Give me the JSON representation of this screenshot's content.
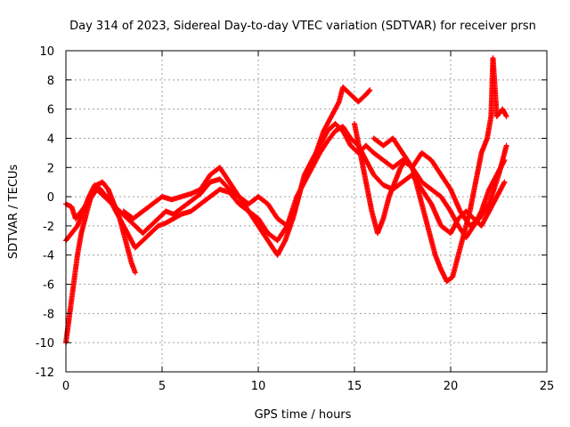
{
  "chart_data": {
    "type": "scatter",
    "title": "Day 314 of 2023, Sidereal Day-to-day VTEC variation (SDTVAR) for receiver prsn",
    "xlabel": "GPS time / hours",
    "ylabel": "SDTVAR / TECUs",
    "xlim": [
      0,
      25
    ],
    "ylim": [
      -12,
      10
    ],
    "x_ticks": [
      0,
      5,
      10,
      15,
      20,
      25
    ],
    "y_ticks": [
      -12,
      -10,
      -8,
      -6,
      -4,
      -2,
      0,
      2,
      4,
      6,
      8,
      10
    ],
    "grid": true,
    "marker": "+",
    "color": "#ff0000",
    "series": [
      {
        "points": [
          [
            0,
            -0.5
          ],
          [
            0.3,
            -0.7
          ],
          [
            0.5,
            -1.5
          ],
          [
            0.8,
            -1.0
          ],
          [
            1.2,
            -0.3
          ],
          [
            1.6,
            0.5
          ],
          [
            2.0,
            0.0
          ],
          [
            2.4,
            -0.5
          ],
          [
            2.8,
            -1.0
          ],
          [
            3.2,
            -1.5
          ],
          [
            3.6,
            -2.0
          ],
          [
            4.0,
            -2.5
          ],
          [
            4.4,
            -2.0
          ],
          [
            4.8,
            -1.5
          ],
          [
            5.2,
            -1.0
          ],
          [
            5.6,
            -1.2
          ],
          [
            6.0,
            -0.8
          ],
          [
            6.5,
            -0.3
          ],
          [
            7.0,
            0.2
          ],
          [
            7.5,
            1.0
          ],
          [
            8.0,
            1.2
          ],
          [
            8.5,
            0.5
          ],
          [
            9.0,
            0.0
          ],
          [
            9.5,
            -0.5
          ],
          [
            10.0,
            0.0
          ],
          [
            10.5,
            -0.5
          ],
          [
            11.0,
            -1.5
          ],
          [
            11.5,
            -2.0
          ],
          [
            12.0,
            -0.5
          ],
          [
            12.4,
            1.5
          ],
          [
            12.8,
            2.5
          ],
          [
            13.2,
            3.5
          ],
          [
            13.6,
            4.5
          ],
          [
            14.0,
            5.0
          ],
          [
            14.4,
            4.5
          ],
          [
            14.8,
            3.5
          ],
          [
            15.2,
            3.0
          ],
          [
            15.6,
            3.5
          ],
          [
            16.0,
            3.0
          ],
          [
            16.5,
            2.5
          ],
          [
            17.0,
            2.0
          ],
          [
            17.5,
            2.5
          ],
          [
            18.0,
            2.0
          ],
          [
            18.5,
            1.0
          ],
          [
            19.0,
            0.5
          ],
          [
            19.5,
            0.0
          ],
          [
            20.0,
            -1.0
          ],
          [
            20.4,
            -2.0
          ],
          [
            20.8,
            -2.8
          ],
          [
            21.2,
            -2.0
          ],
          [
            21.6,
            -1.0
          ],
          [
            22.0,
            0.5
          ],
          [
            22.4,
            1.5
          ],
          [
            22.8,
            2.5
          ]
        ]
      },
      {
        "points": [
          [
            0,
            -3.0
          ],
          [
            0.3,
            -2.5
          ],
          [
            0.6,
            -2.0
          ],
          [
            0.9,
            -1.0
          ],
          [
            1.2,
            0.0
          ],
          [
            1.5,
            0.8
          ],
          [
            1.8,
            0.5
          ],
          [
            2.1,
            0.0
          ],
          [
            2.4,
            -0.5
          ],
          [
            2.8,
            -1.5
          ],
          [
            3.2,
            -2.5
          ],
          [
            3.6,
            -3.5
          ],
          [
            4.0,
            -3.0
          ],
          [
            4.4,
            -2.5
          ],
          [
            4.8,
            -2.0
          ],
          [
            5.2,
            -1.8
          ],
          [
            5.6,
            -1.5
          ],
          [
            6.0,
            -1.2
          ],
          [
            6.5,
            -1.0
          ],
          [
            7.0,
            -0.5
          ],
          [
            7.5,
            0.0
          ],
          [
            8.0,
            0.5
          ],
          [
            8.5,
            0.3
          ],
          [
            9.0,
            -0.5
          ],
          [
            9.5,
            -1.0
          ],
          [
            10.0,
            -1.5
          ],
          [
            10.5,
            -2.5
          ],
          [
            11.0,
            -3.0
          ],
          [
            11.5,
            -2.0
          ],
          [
            12.0,
            0.0
          ],
          [
            12.4,
            1.0
          ],
          [
            12.8,
            2.0
          ],
          [
            13.2,
            3.0
          ],
          [
            13.6,
            3.8
          ],
          [
            14.0,
            4.5
          ],
          [
            14.4,
            4.8
          ],
          [
            14.8,
            4.0
          ],
          [
            15.2,
            3.5
          ],
          [
            15.6,
            2.5
          ],
          [
            16.0,
            1.5
          ],
          [
            16.5,
            0.8
          ],
          [
            17.0,
            0.5
          ],
          [
            17.5,
            1.0
          ],
          [
            18.0,
            1.5
          ],
          [
            18.5,
            0.5
          ],
          [
            19.0,
            -0.5
          ],
          [
            19.5,
            -2.0
          ],
          [
            20.0,
            -2.5
          ],
          [
            20.4,
            -1.5
          ],
          [
            20.8,
            -1.0
          ],
          [
            21.2,
            -1.5
          ],
          [
            21.6,
            -2.0
          ],
          [
            22.0,
            -1.0
          ],
          [
            22.4,
            0.0
          ],
          [
            22.8,
            1.0
          ]
        ]
      },
      {
        "points": [
          [
            0,
            -10.0
          ],
          [
            0.2,
            -8.0
          ],
          [
            0.4,
            -6.0
          ],
          [
            0.6,
            -4.0
          ],
          [
            0.8,
            -2.5
          ],
          [
            1.0,
            -1.5
          ],
          [
            1.3,
            0.0
          ],
          [
            1.6,
            0.8
          ],
          [
            1.9,
            1.0
          ],
          [
            2.2,
            0.5
          ],
          [
            2.5,
            -0.5
          ],
          [
            2.8,
            -1.5
          ],
          [
            3.0,
            -2.5
          ],
          [
            3.2,
            -3.5
          ],
          [
            3.4,
            -4.5
          ],
          [
            3.6,
            -5.2
          ]
        ]
      },
      {
        "points": [
          [
            3.0,
            -1.0
          ],
          [
            3.5,
            -1.5
          ],
          [
            4.0,
            -1.0
          ],
          [
            4.5,
            -0.5
          ],
          [
            5.0,
            0.0
          ],
          [
            5.5,
            -0.2
          ],
          [
            6.0,
            0.0
          ],
          [
            6.5,
            0.2
          ],
          [
            7.0,
            0.5
          ],
          [
            7.5,
            1.5
          ],
          [
            8.0,
            2.0
          ],
          [
            8.5,
            1.0
          ],
          [
            9.0,
            0.0
          ],
          [
            9.5,
            -1.0
          ],
          [
            10.0,
            -2.0
          ],
          [
            10.5,
            -3.0
          ],
          [
            11.0,
            -4.0
          ],
          [
            11.4,
            -3.0
          ],
          [
            11.8,
            -1.5
          ],
          [
            12.2,
            0.5
          ],
          [
            12.6,
            2.0
          ],
          [
            13.0,
            3.0
          ],
          [
            13.4,
            4.5
          ],
          [
            13.8,
            5.5
          ],
          [
            14.2,
            6.5
          ],
          [
            14.4,
            7.5
          ],
          [
            14.8,
            7.0
          ],
          [
            15.2,
            6.5
          ],
          [
            15.6,
            7.0
          ],
          [
            15.8,
            7.3
          ]
        ]
      },
      {
        "points": [
          [
            15.0,
            5.0
          ],
          [
            15.3,
            3.0
          ],
          [
            15.6,
            1.0
          ],
          [
            15.9,
            -1.0
          ],
          [
            16.2,
            -2.5
          ],
          [
            16.5,
            -1.5
          ],
          [
            16.8,
            0.0
          ],
          [
            17.1,
            1.0
          ],
          [
            17.4,
            2.0
          ],
          [
            17.7,
            2.5
          ],
          [
            18.0,
            2.0
          ],
          [
            18.3,
            0.5
          ],
          [
            18.6,
            -1.0
          ],
          [
            18.9,
            -2.5
          ],
          [
            19.2,
            -4.0
          ],
          [
            19.5,
            -5.0
          ],
          [
            19.8,
            -5.8
          ],
          [
            20.1,
            -5.5
          ],
          [
            20.4,
            -4.0
          ],
          [
            20.7,
            -2.5
          ],
          [
            21.0,
            -1.0
          ],
          [
            21.3,
            1.0
          ],
          [
            21.6,
            3.0
          ],
          [
            21.9,
            4.0
          ],
          [
            22.1,
            5.5
          ],
          [
            22.2,
            9.5
          ],
          [
            22.4,
            5.5
          ],
          [
            22.7,
            6.0
          ],
          [
            22.9,
            5.5
          ]
        ]
      },
      {
        "points": [
          [
            16.0,
            4.0
          ],
          [
            16.5,
            3.5
          ],
          [
            17.0,
            4.0
          ],
          [
            17.5,
            3.0
          ],
          [
            18.0,
            2.0
          ],
          [
            18.5,
            3.0
          ],
          [
            19.0,
            2.5
          ],
          [
            19.5,
            1.5
          ],
          [
            20.0,
            0.5
          ],
          [
            20.5,
            -1.0
          ],
          [
            21.0,
            -2.0
          ],
          [
            21.5,
            -1.5
          ],
          [
            22.0,
            -0.5
          ],
          [
            22.5,
            1.5
          ],
          [
            22.9,
            3.5
          ]
        ]
      }
    ]
  }
}
